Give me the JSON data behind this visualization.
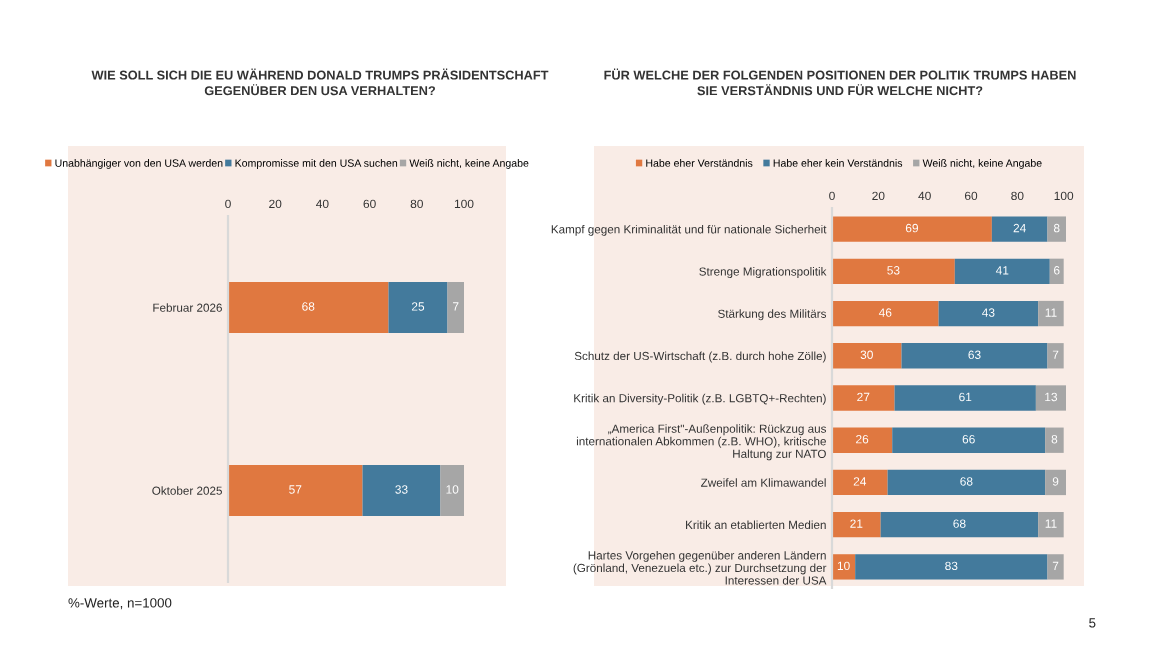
{
  "chart_data": [
    {
      "type": "bar",
      "orientation": "horizontal",
      "stacked": true,
      "title": "WIE SOLL SICH DIE EU WÄHREND DONALD TRUMPS PRÄSIDENTSCHAFT\nGEGENÜBER DEN USA VERHALTEN?",
      "categories": [
        "Februar 2026",
        "Oktober 2025"
      ],
      "series": [
        {
          "name": "Unabhängiger von den USA werden",
          "color": "#e07840",
          "values": [
            68,
            57
          ]
        },
        {
          "name": "Kompromisse mit den USA suchen",
          "color": "#437a9c",
          "values": [
            25,
            33
          ]
        },
        {
          "name": "Weiß nicht, keine Angabe",
          "color": "#a6a6a6",
          "values": [
            7,
            10
          ]
        }
      ],
      "xlim": [
        0,
        100
      ],
      "xticks": [
        0,
        20,
        40,
        60,
        80,
        100
      ],
      "grid": false,
      "legend": "top",
      "data_labels": true,
      "annotations": [
        "%-Werte, n=1000"
      ]
    },
    {
      "type": "bar",
      "orientation": "horizontal",
      "stacked": true,
      "title": "FÜR WELCHE DER FOLGENDEN POSITIONEN DER POLITIK TRUMPS HABEN\nSIE VERSTÄNDNIS UND FÜR WELCHE NICHT?",
      "categories": [
        "Kampf gegen Kriminalität und für nationale Sicherheit",
        "Strenge Migrationspolitik",
        "Stärkung des Militärs",
        "Schutz der US-Wirtschaft (z.B. durch hohe Zölle)",
        "Kritik an Diversity-Politik (z.B. LGBTQ+-Rechten)",
        "„America First\"-Außenpolitik: Rückzug aus\ninternationalen Abkommen (z.B. WHO), kritische\nHaltung zur NATO",
        "Zweifel am Klimawandel",
        "Kritik an etablierten Medien",
        "Hartes Vorgehen gegenüber anderen Ländern\n(Grönland, Venezuela etc.) zur Durchsetzung der\nInteressen der USA"
      ],
      "series": [
        {
          "name": "Habe eher Verständnis",
          "color": "#e07840",
          "values": [
            69,
            53,
            46,
            30,
            27,
            26,
            24,
            21,
            10
          ]
        },
        {
          "name": "Habe eher kein Verständnis",
          "color": "#437a9c",
          "values": [
            24,
            41,
            43,
            63,
            61,
            66,
            68,
            68,
            83
          ]
        },
        {
          "name": "Weiß nicht, keine Angabe",
          "color": "#a6a6a6",
          "values": [
            8,
            6,
            11,
            7,
            13,
            8,
            9,
            11,
            7
          ]
        }
      ],
      "xlim": [
        0,
        101
      ],
      "xticks": [
        0,
        20,
        40,
        60,
        80,
        100
      ],
      "grid": false,
      "legend": "top",
      "data_labels": true,
      "annotations": [
        "5"
      ]
    }
  ]
}
